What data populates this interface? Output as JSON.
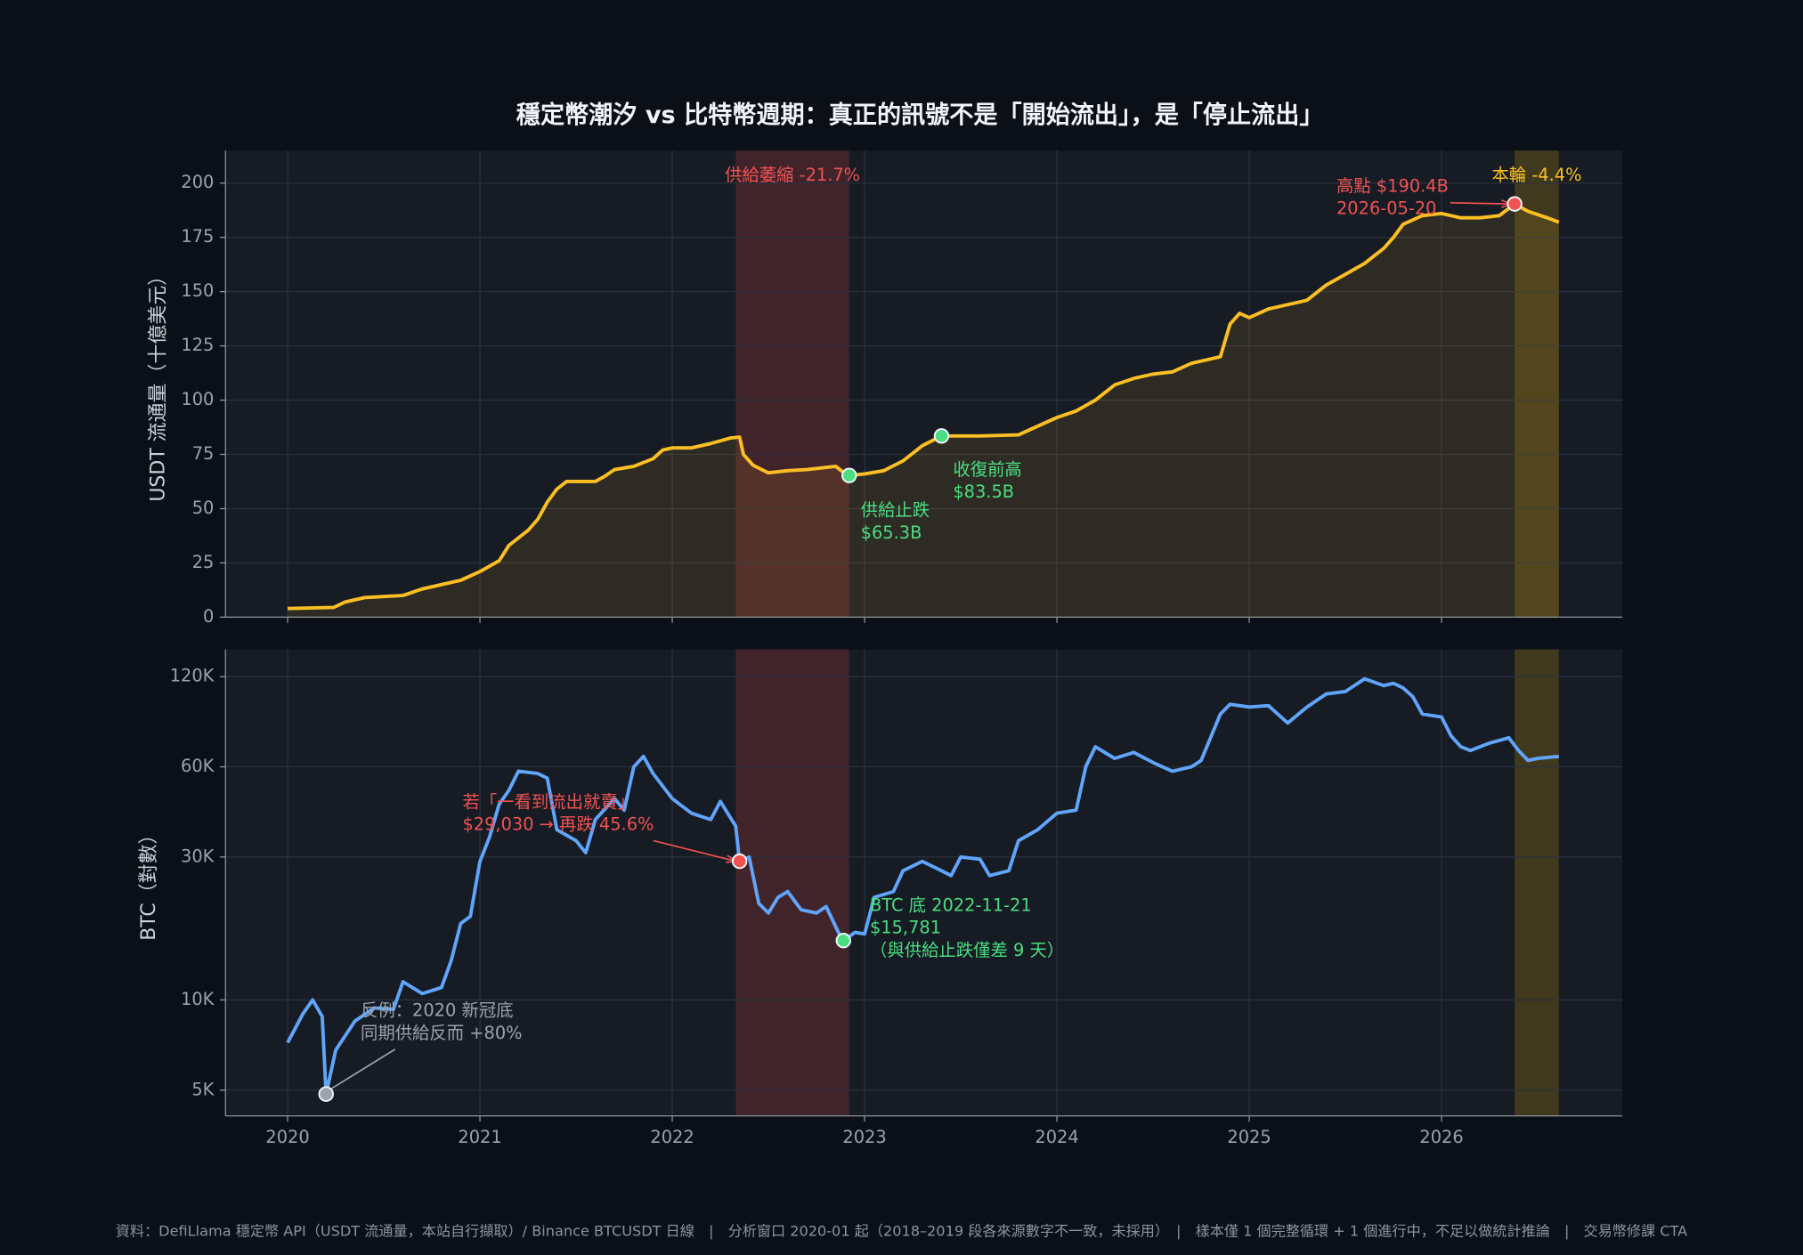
{
  "chart_data": [
    {
      "type": "line",
      "title": "穩定幣潮汐 vs 比特幣週期：真正的訊號不是「開始流出」，是「停止流出」",
      "ylabel": "USDT 流通量（十億美元）",
      "log": false,
      "area": true,
      "x": [
        2020.0,
        2020.24,
        2020.3,
        2020.4,
        2020.5,
        2020.6,
        2020.7,
        2020.8,
        2020.9,
        2021.0,
        2021.1,
        2021.15,
        2021.25,
        2021.3,
        2021.35,
        2021.4,
        2021.45,
        2021.6,
        2021.65,
        2021.7,
        2021.8,
        2021.9,
        2021.95,
        2022.0,
        2022.1,
        2022.2,
        2022.3,
        2022.35,
        2022.37,
        2022.42,
        2022.5,
        2022.6,
        2022.7,
        2022.85,
        2022.9,
        2022.92,
        2023.0,
        2023.1,
        2023.2,
        2023.3,
        2023.4,
        2023.5,
        2023.6,
        2023.8,
        2023.9,
        2024.0,
        2024.1,
        2024.2,
        2024.3,
        2024.4,
        2024.5,
        2024.6,
        2024.7,
        2024.8,
        2024.85,
        2024.9,
        2024.95,
        2025.0,
        2025.1,
        2025.2,
        2025.3,
        2025.4,
        2025.5,
        2025.6,
        2025.7,
        2025.75,
        2025.8,
        2025.9,
        2026.0,
        2026.1,
        2026.2,
        2026.3,
        2026.38,
        2026.45,
        2026.55,
        2026.61
      ],
      "series": [
        {
          "color": "#fbbf24",
          "values": [
            4,
            4.5,
            7,
            9,
            9.5,
            10,
            13,
            15,
            17,
            21,
            26,
            33,
            40,
            45,
            53,
            59,
            62.5,
            62.5,
            65,
            68,
            69.5,
            73,
            77,
            78,
            78,
            80,
            82.5,
            83,
            75,
            70,
            66.5,
            67.5,
            68,
            69.5,
            66,
            65.3,
            66,
            67.5,
            72,
            79,
            83.5,
            83.5,
            83.5,
            84,
            88,
            92,
            95,
            100,
            107,
            110,
            112,
            113,
            117,
            119,
            120,
            135,
            140,
            138,
            142,
            144,
            146,
            153,
            158,
            163,
            170,
            175,
            181,
            185,
            186,
            184,
            184,
            185,
            190.4,
            187,
            184,
            182
          ]
        }
      ],
      "xlim": [
        2019.677,
        2026.94
      ],
      "xticks": [
        2020,
        2021,
        2022,
        2023,
        2024,
        2025,
        2026
      ],
      "ylim": [
        0,
        215
      ],
      "yticks": [
        0,
        25,
        50,
        75,
        100,
        125,
        150,
        175,
        200
      ],
      "grid": true,
      "spans": [
        {
          "x": [
            2022.33,
            2022.92
          ],
          "color": "#ef4444",
          "label": "供給萎縮 -21.7%"
        },
        {
          "x": [
            2026.38,
            2026.61
          ],
          "color": "#eab308",
          "label": "本輪 -4.4%"
        }
      ],
      "annotations": [
        {
          "x": 2022.92,
          "y": 65.3,
          "color": "#4ade80",
          "lines": [
            "供給止跌",
            "$65.3B"
          ]
        },
        {
          "x": 2023.4,
          "y": 83.5,
          "color": "#4ade80",
          "lines": [
            "收復前高",
            "$83.5B"
          ]
        },
        {
          "x": 2026.38,
          "y": 190.4,
          "color": "#f05252",
          "lines": [
            "高點 $190.4B",
            "2026-05-20"
          ]
        }
      ]
    },
    {
      "type": "line",
      "ylabel": "BTC（對數）",
      "log": true,
      "area": false,
      "x": [
        2020.0,
        2020.08,
        2020.13,
        2020.18,
        2020.2,
        2020.25,
        2020.35,
        2020.45,
        2020.55,
        2020.6,
        2020.7,
        2020.8,
        2020.85,
        2020.9,
        2020.95,
        2021.0,
        2021.05,
        2021.1,
        2021.15,
        2021.2,
        2021.3,
        2021.35,
        2021.4,
        2021.5,
        2021.55,
        2021.6,
        2021.7,
        2021.75,
        2021.8,
        2021.85,
        2021.9,
        2022.0,
        2022.1,
        2022.2,
        2022.25,
        2022.33,
        2022.35,
        2022.4,
        2022.45,
        2022.5,
        2022.55,
        2022.6,
        2022.67,
        2022.75,
        2022.8,
        2022.87,
        2022.89,
        2022.95,
        2023.0,
        2023.05,
        2023.15,
        2023.2,
        2023.3,
        2023.4,
        2023.45,
        2023.5,
        2023.6,
        2023.65,
        2023.75,
        2023.8,
        2023.9,
        2024.0,
        2024.1,
        2024.15,
        2024.2,
        2024.3,
        2024.4,
        2024.5,
        2024.6,
        2024.7,
        2024.75,
        2024.85,
        2024.9,
        2025.0,
        2025.1,
        2025.2,
        2025.3,
        2025.4,
        2025.5,
        2025.6,
        2025.7,
        2025.75,
        2025.8,
        2025.85,
        2025.9,
        2026.0,
        2026.05,
        2026.1,
        2026.15,
        2026.25,
        2026.35,
        2026.4,
        2026.45,
        2026.5,
        2026.61
      ],
      "series": [
        {
          "color": "#60a5fa",
          "values": [
            7200,
            9000,
            10000,
            8800,
            4850,
            6800,
            8500,
            9400,
            9300,
            11500,
            10500,
            11000,
            13500,
            18000,
            19000,
            29000,
            35000,
            45000,
            50000,
            58000,
            57000,
            55000,
            37000,
            34000,
            31000,
            40000,
            47000,
            43000,
            60000,
            65000,
            57000,
            47000,
            42000,
            40000,
            46000,
            38000,
            29030,
            30000,
            21000,
            19500,
            22000,
            23000,
            20000,
            19500,
            20500,
            16500,
            15781,
            16800,
            16600,
            22000,
            23000,
            27000,
            29000,
            27000,
            26000,
            30000,
            29500,
            26000,
            27000,
            34000,
            37000,
            42000,
            43000,
            60000,
            70000,
            64000,
            67000,
            62000,
            58000,
            60000,
            63000,
            90000,
            97000,
            95000,
            96000,
            84000,
            95000,
            105000,
            107000,
            118000,
            112000,
            114000,
            110000,
            103000,
            90000,
            88000,
            76000,
            70000,
            68000,
            72000,
            75000,
            68000,
            63000,
            64000,
            65000
          ]
        }
      ],
      "xlim": [
        2019.677,
        2026.94
      ],
      "xticks": [
        2020,
        2021,
        2022,
        2023,
        2024,
        2025,
        2026
      ],
      "ylim": [
        4100,
        148000
      ],
      "yticks": [
        {
          "value": 5000,
          "label": "5K"
        },
        {
          "value": 10000,
          "label": "10K"
        },
        {
          "value": 30000,
          "label": "30K"
        },
        {
          "value": 60000,
          "label": "60K"
        },
        {
          "value": 120000,
          "label": "120K"
        }
      ],
      "grid": true,
      "spans": [
        {
          "x": [
            2022.33,
            2022.92
          ],
          "color": "#ef4444"
        },
        {
          "x": [
            2026.38,
            2026.61
          ],
          "color": "#eab308"
        }
      ],
      "annotations": [
        {
          "x": 2022.35,
          "y": 29030,
          "color": "#f05252",
          "lines": [
            "若「一看到流出就賣」",
            "$29,030 → 再跌 45.6%"
          ]
        },
        {
          "x": 2022.89,
          "y": 15781,
          "color": "#4ade80",
          "lines": [
            "BTC 底 2022-11-21",
            "$15,781",
            "（與供給止跌僅差 9 天）"
          ]
        },
        {
          "x": 2020.2,
          "y": 4850,
          "color": "#9ca3af",
          "lines": [
            "反例：2020 新冠底",
            "同期供給反而 +80%"
          ]
        }
      ]
    }
  ],
  "footer": "資料：DefiLlama 穩定幣 API（USDT 流通量，本站自行擷取）/ Binance BTCUSDT 日線　|　分析窗口 2020-01 起（2018–2019 段各來源數字不一致，未採用）　|　樣本僅 1 個完整循環 + 1 個進行中，不足以做統計推論　|　交易幣修課 CTA"
}
